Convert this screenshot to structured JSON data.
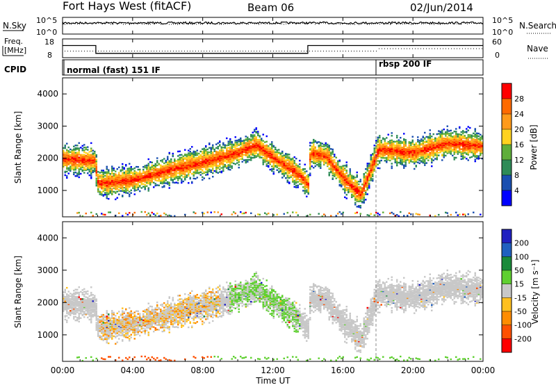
{
  "header": {
    "station": "Fort Hays West (fitACF)",
    "beam": "Beam 06",
    "date": "02/Jun/2014"
  },
  "noise_panel": {
    "left_label": "N.Sky",
    "right_label": "N.Search",
    "left_ticks": [
      "10^5",
      "10^0"
    ],
    "right_ticks": [
      "10^5",
      "10^0"
    ]
  },
  "freq_panel": {
    "left_label_1": "Freq.",
    "left_label_2": "[MHz]",
    "right_label": "Nave",
    "left_ticks": [
      "18",
      "8"
    ],
    "right_ticks": [
      "60",
      "0"
    ]
  },
  "cpid_panel": {
    "label": "CPID",
    "modes": [
      {
        "name": "normal (fast) 151 IF",
        "start_hour": 0,
        "end_hour": 18.0
      },
      {
        "name": "rbsp 200 IF",
        "start_hour": 18.0,
        "end_hour": 24
      }
    ]
  },
  "colors": {
    "power": [
      "#0000ff",
      "#1a4fb0",
      "#2e8b57",
      "#5fae3a",
      "#ffd21f",
      "#ff9a1a",
      "#ff6a00",
      "#ff0000"
    ],
    "velocity": [
      "#2020c0",
      "#2060c0",
      "#1a8a3a",
      "#5fd030",
      "#c8c8c8",
      "#ffc020",
      "#ff8c00",
      "#ff5000",
      "#ff0000"
    ]
  },
  "chart_data": [
    {
      "type": "line",
      "panel": "noise",
      "x": [
        0,
        4,
        8,
        12,
        16,
        20,
        24
      ],
      "series": [
        {
          "name": "N.Sky",
          "values": [
            10000,
            10000,
            10000,
            10000,
            10000,
            10000,
            10000
          ]
        }
      ],
      "ylim_log10": [
        0,
        5
      ]
    },
    {
      "type": "line",
      "panel": "frequency",
      "x": [
        0,
        1.9,
        1.9,
        14.0,
        14.0,
        24
      ],
      "series": [
        {
          "name": "Freq.",
          "values": [
            14.5,
            14.5,
            10.3,
            10.3,
            14.5,
            14.5
          ]
        },
        {
          "name": "Nave",
          "values": [
            20,
            20,
            20,
            20,
            20,
            28
          ]
        }
      ],
      "ylim": [
        8,
        18
      ]
    },
    {
      "type": "heatmap",
      "panel": "power",
      "xlabel": "",
      "ylabel": "Slant Range [km]",
      "xlim": [
        0,
        24
      ],
      "ylim": [
        180,
        4500
      ],
      "colorbar": {
        "label": "Power [dB]",
        "ticks": [
          4,
          8,
          12,
          16,
          20,
          24,
          28
        ]
      },
      "band_centers_km": [
        [
          0,
          2000
        ],
        [
          1.8,
          1950
        ],
        [
          2.0,
          1250
        ],
        [
          4,
          1350
        ],
        [
          6,
          1650
        ],
        [
          8,
          1900
        ],
        [
          10,
          2200
        ],
        [
          11,
          2450
        ],
        [
          12,
          2050
        ],
        [
          13.5,
          1500
        ],
        [
          14.0,
          1200
        ],
        [
          14.1,
          2200
        ],
        [
          15,
          2100
        ],
        [
          16,
          1400
        ],
        [
          17,
          900
        ],
        [
          18,
          2300
        ],
        [
          20,
          2200
        ],
        [
          22,
          2500
        ],
        [
          24,
          2400
        ]
      ]
    },
    {
      "type": "heatmap",
      "panel": "velocity",
      "xlabel": "Time UT",
      "ylabel": "Slant Range [km]",
      "xlim": [
        0,
        24
      ],
      "ylim": [
        180,
        4500
      ],
      "colorbar": {
        "label": "Velocity [m s⁻¹]",
        "ticks": [
          200,
          100,
          50,
          15,
          -15,
          -50,
          -100,
          -200
        ]
      }
    }
  ],
  "axes": {
    "x_ticks": [
      "00:00",
      "04:00",
      "08:00",
      "12:00",
      "16:00",
      "20:00",
      "00:00"
    ],
    "y_ticks": [
      "1000",
      "2000",
      "3000",
      "4000"
    ],
    "xlabel": "Time UT",
    "ylabel_power": "Slant Range [km]",
    "ylabel_velocity": "Slant Range [km]",
    "power_label": "Power [dB]",
    "velocity_label": "Velocity [m s⁻¹]",
    "power_ticks": [
      "28",
      "24",
      "20",
      "16",
      "12",
      "8",
      "4"
    ],
    "velocity_ticks": [
      "200",
      "100",
      "50",
      "15",
      "-15",
      "-50",
      "-100",
      "-200"
    ]
  }
}
